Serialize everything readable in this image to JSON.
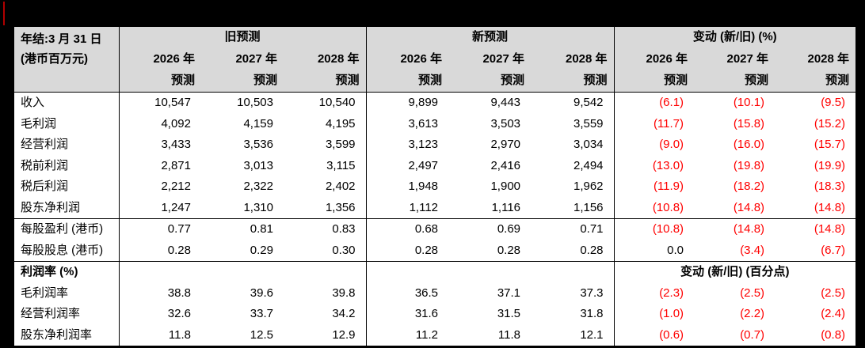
{
  "page": {
    "background_color": "#000000",
    "accent_bar_color": "#b00000"
  },
  "table": {
    "colors": {
      "header_bg": "#d9d9d9",
      "text": "#000000",
      "negative": "#ff0000"
    },
    "header": {
      "row_label_line1": "年结:3 月 31 日",
      "row_label_line2": "(港币百万元)",
      "groups": [
        {
          "label": "旧预测"
        },
        {
          "label": "新预测"
        },
        {
          "label": "变动 (新/旧) (%)"
        }
      ],
      "year_labels": [
        "2026 年",
        "2027 年",
        "2028 年"
      ],
      "forecast_label": "预测"
    },
    "rows": [
      {
        "label": "收入",
        "old": [
          "10,547",
          "10,503",
          "10,540"
        ],
        "new": [
          "9,899",
          "9,443",
          "9,542"
        ],
        "chg": [
          "(6.1)",
          "(10.1)",
          "(9.5)"
        ]
      },
      {
        "label": "毛利润",
        "old": [
          "4,092",
          "4,159",
          "4,195"
        ],
        "new": [
          "3,613",
          "3,503",
          "3,559"
        ],
        "chg": [
          "(11.7)",
          "(15.8)",
          "(15.2)"
        ]
      },
      {
        "label": "经营利润",
        "old": [
          "3,433",
          "3,536",
          "3,599"
        ],
        "new": [
          "3,123",
          "2,970",
          "3,034"
        ],
        "chg": [
          "(9.0)",
          "(16.0)",
          "(15.7)"
        ]
      },
      {
        "label": "税前利润",
        "old": [
          "2,871",
          "3,013",
          "3,115"
        ],
        "new": [
          "2,497",
          "2,416",
          "2,494"
        ],
        "chg": [
          "(13.0)",
          "(19.8)",
          "(19.9)"
        ]
      },
      {
        "label": "税后利润",
        "old": [
          "2,212",
          "2,322",
          "2,402"
        ],
        "new": [
          "1,948",
          "1,900",
          "1,962"
        ],
        "chg": [
          "(11.9)",
          "(18.2)",
          "(18.3)"
        ]
      },
      {
        "label": "股东净利润",
        "old": [
          "1,247",
          "1,310",
          "1,356"
        ],
        "new": [
          "1,112",
          "1,116",
          "1,156"
        ],
        "chg": [
          "(10.8)",
          "(14.8)",
          "(14.8)"
        ]
      },
      {
        "label": "每股盈利 (港币)",
        "separator_above": true,
        "old": [
          "0.77",
          "0.81",
          "0.83"
        ],
        "new": [
          "0.68",
          "0.69",
          "0.71"
        ],
        "chg": [
          "(10.8)",
          "(14.8)",
          "(14.8)"
        ]
      },
      {
        "label": "每股股息 (港币)",
        "old": [
          "0.28",
          "0.29",
          "0.30"
        ],
        "new": [
          "0.28",
          "0.28",
          "0.28"
        ],
        "chg": [
          "0.0",
          "(3.4)",
          "(6.7)"
        ],
        "chg_black_indexes": [
          0
        ]
      },
      {
        "label": "利润率 (%)",
        "separator_above": true,
        "bold_label": true,
        "old": [
          "",
          "",
          ""
        ],
        "new": [
          "",
          "",
          ""
        ],
        "chg_span": "变动 (新/旧) (百分点)"
      },
      {
        "label": "毛利润率",
        "old": [
          "38.8",
          "39.6",
          "39.8"
        ],
        "new": [
          "36.5",
          "37.1",
          "37.3"
        ],
        "chg": [
          "(2.3)",
          "(2.5)",
          "(2.5)"
        ]
      },
      {
        "label": "经营利润率",
        "old": [
          "32.6",
          "33.7",
          "34.2"
        ],
        "new": [
          "31.6",
          "31.5",
          "31.8"
        ],
        "chg": [
          "(1.0)",
          "(2.2)",
          "(2.4)"
        ]
      },
      {
        "label": "股东净利润率",
        "old": [
          "11.8",
          "12.5",
          "12.9"
        ],
        "new": [
          "11.2",
          "11.8",
          "12.1"
        ],
        "chg": [
          "(0.6)",
          "(0.7)",
          "(0.8)"
        ]
      }
    ]
  }
}
